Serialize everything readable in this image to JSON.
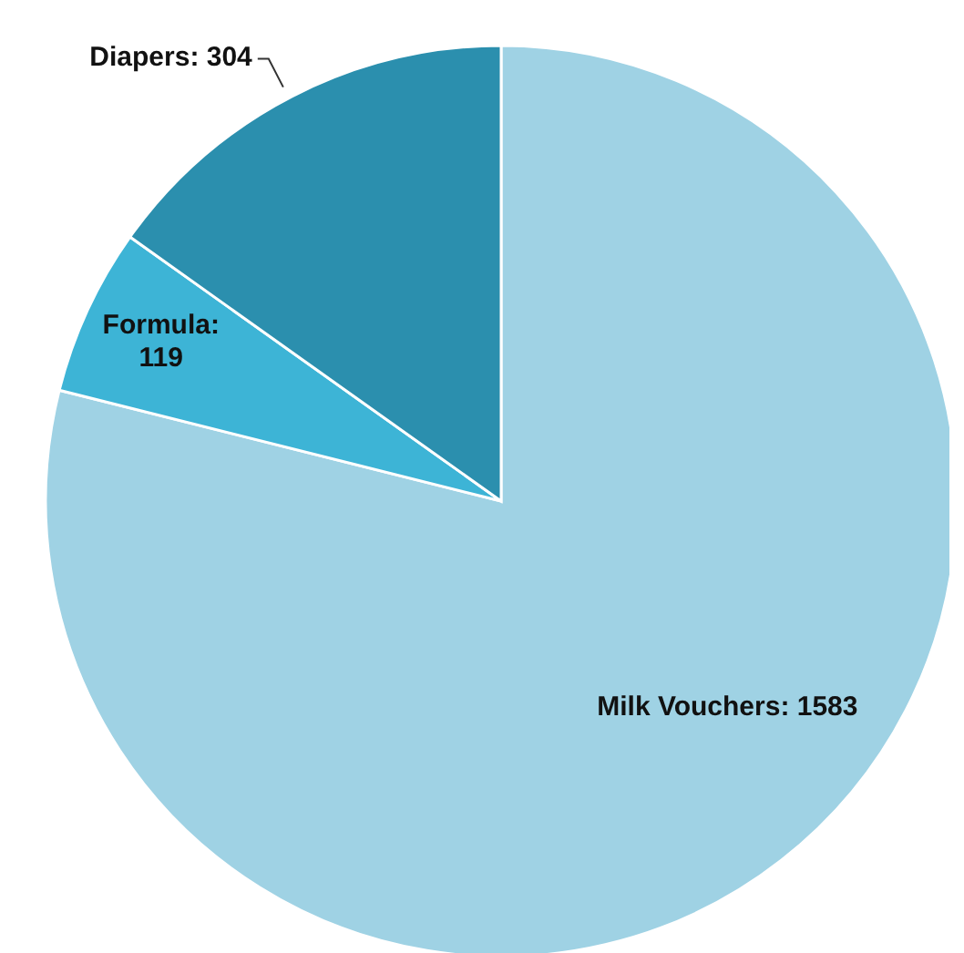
{
  "chart_data": {
    "type": "pie",
    "categories": [
      null,
      null,
      null
    ],
    "values": [
      1583,
      119,
      304
    ],
    "value_labels": [
      "Milk Vouchers: 1583",
      "Formula: 119",
      "Diapers: 304"
    ],
    "colors": [
      "#9fd2e4",
      "#3db4d6",
      "#2b8fae"
    ],
    "legend": false
  }
}
